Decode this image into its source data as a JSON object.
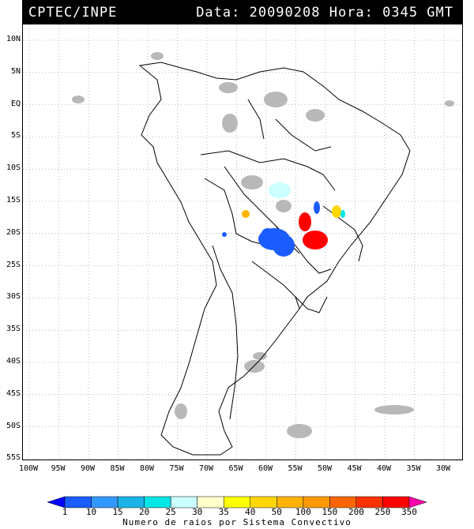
{
  "header": {
    "source": "CPTEC/INPE",
    "datetime": "Data: 20090208 Hora: 0345 GMT"
  },
  "map": {
    "lat_labels": [
      "10N",
      "5N",
      "EQ",
      "5S",
      "10S",
      "15S",
      "20S",
      "25S",
      "30S",
      "35S",
      "40S",
      "45S",
      "50S",
      "55S"
    ],
    "lon_labels": [
      "100W",
      "95W",
      "90W",
      "85W",
      "80W",
      "75W",
      "70W",
      "65W",
      "60W",
      "55W",
      "50W",
      "45W",
      "40W",
      "35W",
      "30W"
    ]
  },
  "legend": {
    "values": [
      "1",
      "10",
      "15",
      "20",
      "25",
      "30",
      "35",
      "40",
      "50",
      "100",
      "150",
      "200",
      "250",
      "350"
    ],
    "caption": "Numero de raios por Sistema Convectivo",
    "colors": [
      "#0000ff",
      "#1a5cff",
      "#3399ff",
      "#1ab3e6",
      "#00e5e5",
      "#ccffff",
      "#ffffcc",
      "#ffff00",
      "#ffd700",
      "#ffb300",
      "#ff9900",
      "#ff6600",
      "#ff3300",
      "#ff0000",
      "#ff00aa"
    ]
  }
}
